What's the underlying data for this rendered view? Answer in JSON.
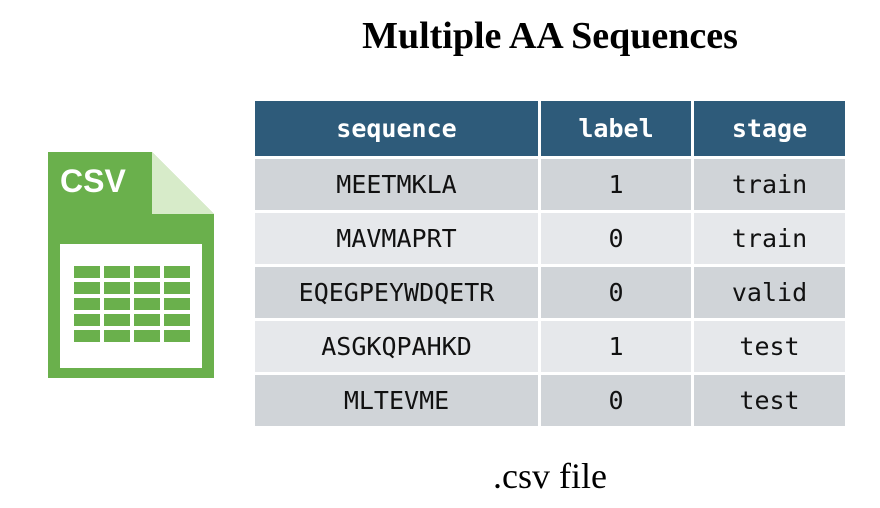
{
  "title": "Multiple AA Sequences",
  "caption": ".csv file",
  "icon": {
    "name": "csv-file-icon",
    "label": "CSV",
    "color": "#6ab04c",
    "fold_color": "#8cc86a"
  },
  "table": {
    "header_color": "#2e5b7a",
    "columns": [
      "sequence",
      "label",
      "stage"
    ],
    "rows": [
      [
        "MEETMKLA",
        "1",
        "train"
      ],
      [
        "MAVMAPRT",
        "0",
        "train"
      ],
      [
        "EQEGPEYWDQETR",
        "0",
        "valid"
      ],
      [
        "ASGKQPAHKD",
        "1",
        "test"
      ],
      [
        "MLTEVME",
        "0",
        "test"
      ]
    ]
  }
}
